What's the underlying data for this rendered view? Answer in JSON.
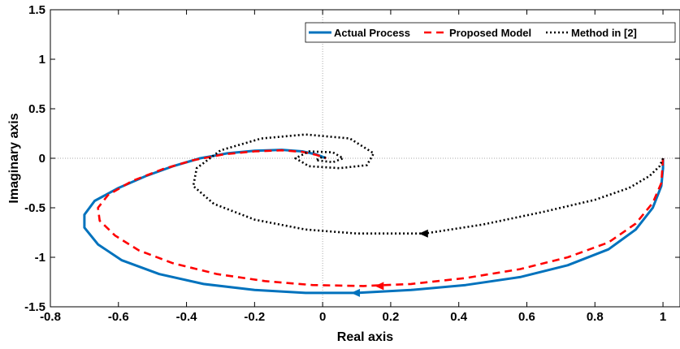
{
  "chart_data": {
    "type": "line",
    "title": "",
    "xlabel": "Real axis",
    "ylabel": "Imaginary axis",
    "xlim": [
      -0.8,
      1.05
    ],
    "ylim": [
      -1.5,
      1.5
    ],
    "x_ticks": [
      -0.8,
      -0.6,
      -0.4,
      -0.2,
      0,
      0.2,
      0.4,
      0.6,
      0.8,
      1
    ],
    "y_ticks": [
      -1.5,
      -1,
      -0.5,
      0,
      0.5,
      1,
      1.5
    ],
    "x_tick_labels": [
      "-0.8",
      "-0.6",
      "-0.4",
      "-0.2",
      "0",
      "0.2",
      "0.4",
      "0.6",
      "0.8",
      "1"
    ],
    "y_tick_labels": [
      "-1.5",
      "-1",
      "-0.5",
      "0",
      "0.5",
      "1",
      "1.5"
    ],
    "grid": false,
    "origin_crosshair": true,
    "legend_position": "top-right",
    "legend_layout": "horizontal",
    "series": [
      {
        "name": "Actual Process",
        "color": "#0072BD",
        "style": "solid",
        "points": [
          [
            1.0,
            0.0
          ],
          [
            1.0,
            -0.1
          ],
          [
            0.995,
            -0.28
          ],
          [
            0.97,
            -0.5
          ],
          [
            0.92,
            -0.72
          ],
          [
            0.84,
            -0.92
          ],
          [
            0.72,
            -1.08
          ],
          [
            0.58,
            -1.2
          ],
          [
            0.42,
            -1.28
          ],
          [
            0.26,
            -1.33
          ],
          [
            0.1,
            -1.36
          ],
          [
            -0.05,
            -1.36
          ],
          [
            -0.2,
            -1.33
          ],
          [
            -0.35,
            -1.27
          ],
          [
            -0.48,
            -1.17
          ],
          [
            -0.59,
            -1.03
          ],
          [
            -0.66,
            -0.87
          ],
          [
            -0.7,
            -0.7
          ],
          [
            -0.7,
            -0.57
          ],
          [
            -0.67,
            -0.43
          ],
          [
            -0.6,
            -0.3
          ],
          [
            -0.52,
            -0.18
          ],
          [
            -0.44,
            -0.08
          ],
          [
            -0.36,
            0.0
          ],
          [
            -0.28,
            0.05
          ],
          [
            -0.2,
            0.075
          ],
          [
            -0.12,
            0.085
          ],
          [
            -0.06,
            0.07
          ],
          [
            -0.02,
            0.04
          ],
          [
            0.0,
            0.015
          ],
          [
            0.01,
            0.0
          ]
        ],
        "arrow_at": [
          0.1,
          -1.36
        ]
      },
      {
        "name": "Proposed Model",
        "color": "#FF0000",
        "style": "dashed",
        "points": [
          [
            1.0,
            0.0
          ],
          [
            0.995,
            -0.25
          ],
          [
            0.97,
            -0.45
          ],
          [
            0.92,
            -0.66
          ],
          [
            0.84,
            -0.85
          ],
          [
            0.72,
            -1.0
          ],
          [
            0.58,
            -1.12
          ],
          [
            0.42,
            -1.21
          ],
          [
            0.26,
            -1.27
          ],
          [
            0.12,
            -1.29
          ],
          [
            -0.03,
            -1.28
          ],
          [
            -0.17,
            -1.24
          ],
          [
            -0.31,
            -1.17
          ],
          [
            -0.44,
            -1.06
          ],
          [
            -0.54,
            -0.93
          ],
          [
            -0.61,
            -0.78
          ],
          [
            -0.655,
            -0.63
          ],
          [
            -0.66,
            -0.5
          ],
          [
            -0.63,
            -0.37
          ],
          [
            -0.56,
            -0.23
          ],
          [
            -0.47,
            -0.11
          ],
          [
            -0.38,
            -0.02
          ],
          [
            -0.29,
            0.04
          ],
          [
            -0.2,
            0.07
          ],
          [
            -0.12,
            0.08
          ],
          [
            -0.06,
            0.065
          ],
          [
            -0.02,
            0.035
          ],
          [
            0.0,
            0.012
          ],
          [
            0.01,
            0.0
          ]
        ],
        "arrow_at": [
          0.17,
          -1.29
        ]
      },
      {
        "name": "Method in [2]",
        "color": "#000000",
        "style": "dotted",
        "points": [
          [
            1.0,
            0.0
          ],
          [
            0.99,
            -0.08
          ],
          [
            0.96,
            -0.18
          ],
          [
            0.9,
            -0.3
          ],
          [
            0.8,
            -0.42
          ],
          [
            0.65,
            -0.54
          ],
          [
            0.47,
            -0.67
          ],
          [
            0.3,
            -0.76
          ],
          [
            0.1,
            -0.76
          ],
          [
            -0.05,
            -0.72
          ],
          [
            -0.2,
            -0.62
          ],
          [
            -0.32,
            -0.46
          ],
          [
            -0.38,
            -0.28
          ],
          [
            -0.37,
            -0.1
          ],
          [
            -0.3,
            0.08
          ],
          [
            -0.18,
            0.2
          ],
          [
            -0.05,
            0.24
          ],
          [
            0.08,
            0.2
          ],
          [
            0.15,
            0.05
          ],
          [
            0.13,
            -0.07
          ],
          [
            0.05,
            -0.1
          ],
          [
            -0.04,
            -0.08
          ],
          [
            -0.08,
            0.0
          ],
          [
            -0.04,
            0.07
          ],
          [
            0.03,
            0.06
          ],
          [
            0.06,
            0.0
          ],
          [
            0.03,
            -0.04
          ],
          [
            -0.02,
            -0.02
          ],
          [
            0.0,
            0.015
          ],
          [
            0.015,
            0.0
          ]
        ],
        "arrow_at": [
          0.3,
          -0.76
        ]
      }
    ]
  }
}
